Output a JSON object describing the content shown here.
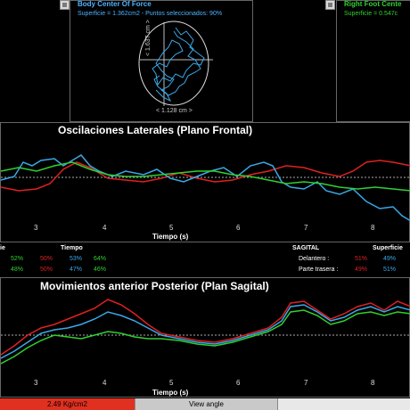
{
  "top": {
    "center": {
      "title": "Body Center Of Force",
      "subtitle": "Superficie = 1.362cm2 - Puntos seleccionados: 90%",
      "y_label": "< 1.637 cm >",
      "x_label": "< 1.128 cm >"
    },
    "right": {
      "title": "Right Foot Cente",
      "subtitle": "Superficie = 0.547c"
    }
  },
  "frontal": {
    "title": "Oscilaciones Laterales (Plano Frontal)",
    "ticks": [
      "3",
      "4",
      "5",
      "6",
      "7",
      "8"
    ],
    "xlabel": "Tiempo  (s)",
    "colors": {
      "red": "#e02020",
      "blue": "#3aa8e8",
      "green": "#30d030"
    }
  },
  "stats": {
    "left_header": "ie",
    "tiempo_header": "Tiempo",
    "row1": [
      "52%",
      "50%",
      "53%",
      "64%"
    ],
    "row2": [
      "48%",
      "50%",
      "47%",
      "46%"
    ],
    "sagital_header": "SAGITAL",
    "superficie_header": "Superficie",
    "delantero_label": "Delantero :",
    "delantero_values": [
      "51%",
      "49%"
    ],
    "trasera_label": "Parte trasera :",
    "trasera_values": [
      "49%",
      "51%"
    ]
  },
  "sagittal": {
    "title": "Movimientos anterior Posterior (Plan Sagital)",
    "ticks": [
      "3",
      "4",
      "5",
      "6",
      "7",
      "8"
    ],
    "xlabel": "Tiempo  (s)"
  },
  "bottombar": {
    "pressure": "2.49 Kg/cm2",
    "view_angle": "View angle"
  }
}
